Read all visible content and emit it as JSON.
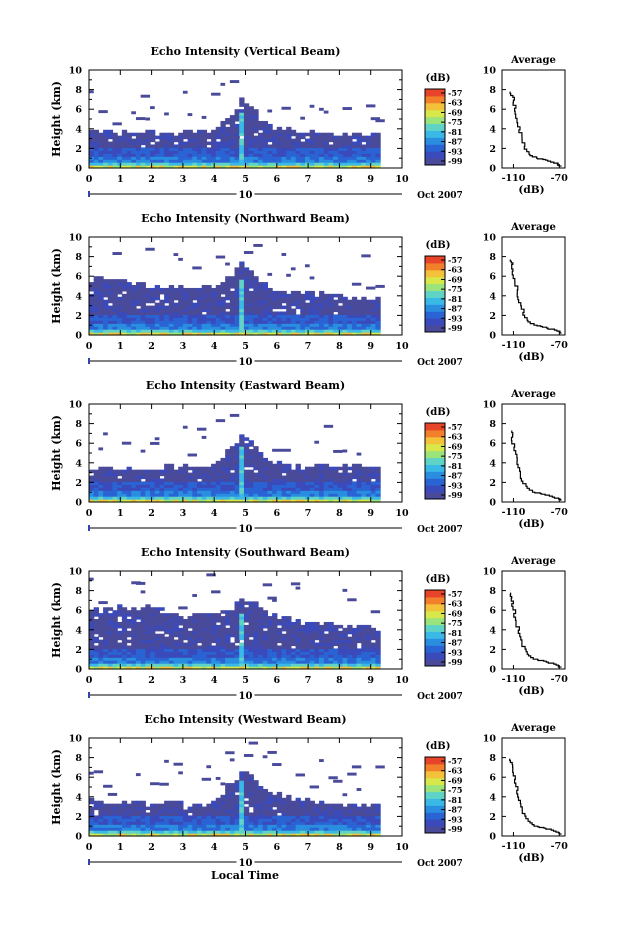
{
  "colors": {
    "colorbar": [
      "#4a4a9a",
      "#3a4aba",
      "#2a63d3",
      "#2a8ee0",
      "#3ab8e6",
      "#5fd3c6",
      "#9be37b",
      "#d8e84a",
      "#f4c13a",
      "#f2802a",
      "#e8442a"
    ],
    "ink": "#000000"
  },
  "x_axis_label": "Local Time",
  "panels": [
    {
      "title": "Echo Intensity (Vertical Beam)",
      "ylabel": "Height (km)",
      "xticks": [
        "0",
        "1",
        "2",
        "3",
        "4",
        "5",
        "6",
        "7",
        "8",
        "9",
        "10"
      ],
      "yticks": [
        "0",
        "2",
        "4",
        "6",
        "8",
        "10"
      ],
      "date_day": "10",
      "date_label": "Oct 2007",
      "cb_unit": "(dB)",
      "cb_ticks": [
        "-57",
        "-63",
        "-69",
        "-75",
        "-81",
        "-87",
        "-93",
        "-99"
      ],
      "avg_title": "Average",
      "avg_xticks": [
        "-110",
        "-70"
      ],
      "avg_yticks": [
        "0",
        "2",
        "4",
        "6",
        "8",
        "10"
      ],
      "avg_unit": "(dB)"
    },
    {
      "title": "Echo Intensity (Northward Beam)",
      "ylabel": "Height (km)",
      "xticks": [
        "0",
        "1",
        "2",
        "3",
        "4",
        "5",
        "6",
        "7",
        "8",
        "9",
        "10"
      ],
      "yticks": [
        "0",
        "2",
        "4",
        "6",
        "8",
        "10"
      ],
      "date_day": "10",
      "date_label": "Oct 2007",
      "cb_unit": "(dB)",
      "cb_ticks": [
        "-57",
        "-63",
        "-69",
        "-75",
        "-81",
        "-87",
        "-93",
        "-99"
      ],
      "avg_title": "Average",
      "avg_xticks": [
        "-110",
        "-70"
      ],
      "avg_yticks": [
        "0",
        "2",
        "4",
        "6",
        "8",
        "10"
      ],
      "avg_unit": "(dB)"
    },
    {
      "title": "Echo Intensity (Eastward Beam)",
      "ylabel": "Height (km)",
      "xticks": [
        "0",
        "1",
        "2",
        "3",
        "4",
        "5",
        "6",
        "7",
        "8",
        "9",
        "10"
      ],
      "yticks": [
        "0",
        "2",
        "4",
        "6",
        "8",
        "10"
      ],
      "date_day": "10",
      "date_label": "Oct 2007",
      "cb_unit": "(dB)",
      "cb_ticks": [
        "-57",
        "-63",
        "-69",
        "-75",
        "-81",
        "-87",
        "-93",
        "-99"
      ],
      "avg_title": "Average",
      "avg_xticks": [
        "-110",
        "-70"
      ],
      "avg_yticks": [
        "0",
        "2",
        "4",
        "6",
        "8",
        "10"
      ],
      "avg_unit": "(dB)"
    },
    {
      "title": "Echo Intensity (Southward Beam)",
      "ylabel": "Height (km)",
      "xticks": [
        "0",
        "1",
        "2",
        "3",
        "4",
        "5",
        "6",
        "7",
        "8",
        "9",
        "10"
      ],
      "yticks": [
        "0",
        "2",
        "4",
        "6",
        "8",
        "10"
      ],
      "date_day": "10",
      "date_label": "Oct 2007",
      "cb_unit": "(dB)",
      "cb_ticks": [
        "-57",
        "-63",
        "-69",
        "-75",
        "-81",
        "-87",
        "-93",
        "-99"
      ],
      "avg_title": "Average",
      "avg_xticks": [
        "-110",
        "-70"
      ],
      "avg_yticks": [
        "0",
        "2",
        "4",
        "6",
        "8",
        "10"
      ],
      "avg_unit": "(dB)"
    },
    {
      "title": "Echo Intensity (Westward Beam)",
      "ylabel": "Height (km)",
      "xticks": [
        "0",
        "1",
        "2",
        "3",
        "4",
        "5",
        "6",
        "7",
        "8",
        "9",
        "10"
      ],
      "yticks": [
        "0",
        "2",
        "4",
        "6",
        "8",
        "10"
      ],
      "date_day": "10",
      "date_label": "Oct 2007",
      "cb_unit": "(dB)",
      "cb_ticks": [
        "-57",
        "-63",
        "-69",
        "-75",
        "-81",
        "-87",
        "-93",
        "-99"
      ],
      "avg_title": "Average",
      "avg_xticks": [
        "-110",
        "-70"
      ],
      "avg_yticks": [
        "0",
        "2",
        "4",
        "6",
        "8",
        "10"
      ],
      "avg_unit": "(dB)"
    }
  ],
  "chart_data": [
    {
      "type": "heatmap",
      "title": "Echo Intensity (Vertical Beam)",
      "xlabel": "",
      "ylabel": "Height (km)",
      "xlim": [
        0,
        10
      ],
      "ylim": [
        0,
        10
      ],
      "colorbar": {
        "unit": "(dB)",
        "range": [
          -99,
          -57
        ],
        "ticks": [
          -57,
          -63,
          -69,
          -75,
          -81,
          -87,
          -93,
          -99
        ]
      },
      "echo_top_km": [
        {
          "x": 0,
          "y": 3.8
        },
        {
          "x": 1,
          "y": 3.7
        },
        {
          "x": 2,
          "y": 3.6
        },
        {
          "x": 3,
          "y": 3.7
        },
        {
          "x": 4,
          "y": 3.9
        },
        {
          "x": 4.7,
          "y": 5.8
        },
        {
          "x": 4.9,
          "y": 7.5
        },
        {
          "x": 5.5,
          "y": 5.0
        },
        {
          "x": 6,
          "y": 4.0
        },
        {
          "x": 7,
          "y": 3.8
        },
        {
          "x": 8,
          "y": 3.6
        },
        {
          "x": 9,
          "y": 3.6
        },
        {
          "x": 9.3,
          "y": 3.8
        }
      ],
      "average_profile": {
        "title": "Average",
        "xlabel": "(dB)",
        "xlim": [
          -120,
          -65
        ],
        "ylim": [
          0,
          10
        ],
        "points": [
          {
            "x": -68,
            "y": 0.2
          },
          {
            "x": -72,
            "y": 0.5
          },
          {
            "x": -80,
            "y": 0.8
          },
          {
            "x": -88,
            "y": 1.0
          },
          {
            "x": -95,
            "y": 1.4
          },
          {
            "x": -100,
            "y": 2.2
          },
          {
            "x": -103,
            "y": 3.3
          },
          {
            "x": -105,
            "y": 4.2
          },
          {
            "x": -107,
            "y": 5.5
          },
          {
            "x": -109,
            "y": 6.4
          },
          {
            "x": -110,
            "y": 7.2
          },
          {
            "x": -112,
            "y": 7.8
          }
        ]
      }
    },
    {
      "type": "heatmap",
      "title": "Echo Intensity (Northward Beam)",
      "xlabel": "",
      "ylabel": "Height (km)",
      "xlim": [
        0,
        10
      ],
      "ylim": [
        0,
        10
      ],
      "colorbar": {
        "unit": "(dB)",
        "range": [
          -99,
          -57
        ],
        "ticks": [
          -57,
          -63,
          -69,
          -75,
          -81,
          -87,
          -93,
          -99
        ]
      },
      "echo_top_km": [
        {
          "x": 0,
          "y": 6.0
        },
        {
          "x": 1,
          "y": 5.6
        },
        {
          "x": 2,
          "y": 5.0
        },
        {
          "x": 3,
          "y": 4.8
        },
        {
          "x": 4,
          "y": 4.9
        },
        {
          "x": 4.7,
          "y": 6.5
        },
        {
          "x": 4.9,
          "y": 7.6
        },
        {
          "x": 5.5,
          "y": 5.6
        },
        {
          "x": 6,
          "y": 4.5
        },
        {
          "x": 7,
          "y": 4.2
        },
        {
          "x": 8,
          "y": 4.0
        },
        {
          "x": 9,
          "y": 3.8
        },
        {
          "x": 9.3,
          "y": 3.8
        }
      ],
      "average_profile": {
        "title": "Average",
        "xlabel": "(dB)",
        "xlim": [
          -120,
          -65
        ],
        "ylim": [
          0,
          10
        ],
        "points": [
          {
            "x": -68,
            "y": 0.2
          },
          {
            "x": -72,
            "y": 0.5
          },
          {
            "x": -82,
            "y": 0.8
          },
          {
            "x": -90,
            "y": 1.0
          },
          {
            "x": -97,
            "y": 1.5
          },
          {
            "x": -101,
            "y": 2.3
          },
          {
            "x": -104,
            "y": 3.3
          },
          {
            "x": -106,
            "y": 4.2
          },
          {
            "x": -108,
            "y": 5.4
          },
          {
            "x": -110,
            "y": 6.5
          },
          {
            "x": -111,
            "y": 7.2
          },
          {
            "x": -112,
            "y": 7.7
          }
        ]
      }
    },
    {
      "type": "heatmap",
      "title": "Echo Intensity (Eastward Beam)",
      "xlabel": "",
      "ylabel": "Height (km)",
      "xlim": [
        0,
        10
      ],
      "ylim": [
        0,
        10
      ],
      "colorbar": {
        "unit": "(dB)",
        "range": [
          -99,
          -57
        ],
        "ticks": [
          -57,
          -63,
          -69,
          -75,
          -81,
          -87,
          -93,
          -99
        ]
      },
      "echo_top_km": [
        {
          "x": 0,
          "y": 3.4
        },
        {
          "x": 1,
          "y": 3.5
        },
        {
          "x": 2,
          "y": 3.4
        },
        {
          "x": 3,
          "y": 3.6
        },
        {
          "x": 4,
          "y": 4.0
        },
        {
          "x": 4.7,
          "y": 6.0
        },
        {
          "x": 4.9,
          "y": 7.2
        },
        {
          "x": 5.5,
          "y": 4.8
        },
        {
          "x": 6,
          "y": 3.9
        },
        {
          "x": 7,
          "y": 3.8
        },
        {
          "x": 8,
          "y": 3.7
        },
        {
          "x": 9,
          "y": 3.6
        },
        {
          "x": 9.3,
          "y": 3.6
        }
      ],
      "average_profile": {
        "title": "Average",
        "xlabel": "(dB)",
        "xlim": [
          -120,
          -65
        ],
        "ylim": [
          0,
          10
        ],
        "points": [
          {
            "x": -68,
            "y": 0.2
          },
          {
            "x": -73,
            "y": 0.5
          },
          {
            "x": -82,
            "y": 0.8
          },
          {
            "x": -91,
            "y": 1.0
          },
          {
            "x": -98,
            "y": 1.6
          },
          {
            "x": -102,
            "y": 2.4
          },
          {
            "x": -105,
            "y": 3.5
          },
          {
            "x": -107,
            "y": 4.5
          },
          {
            "x": -109,
            "y": 5.6
          },
          {
            "x": -111,
            "y": 6.6
          },
          {
            "x": -112,
            "y": 7.3
          }
        ]
      }
    },
    {
      "type": "heatmap",
      "title": "Echo Intensity (Southward Beam)",
      "xlabel": "",
      "ylabel": "Height (km)",
      "xlim": [
        0,
        10
      ],
      "ylim": [
        0,
        10
      ],
      "colorbar": {
        "unit": "(dB)",
        "range": [
          -99,
          -57
        ],
        "ticks": [
          -57,
          -63,
          -69,
          -75,
          -81,
          -87,
          -93,
          -99
        ]
      },
      "echo_top_km": [
        {
          "x": 0,
          "y": 6.0
        },
        {
          "x": 1,
          "y": 6.3
        },
        {
          "x": 2,
          "y": 6.2
        },
        {
          "x": 3,
          "y": 5.5
        },
        {
          "x": 4,
          "y": 5.6
        },
        {
          "x": 4.7,
          "y": 6.5
        },
        {
          "x": 4.9,
          "y": 7.5
        },
        {
          "x": 5.5,
          "y": 6.2
        },
        {
          "x": 6,
          "y": 5.3
        },
        {
          "x": 7,
          "y": 4.8
        },
        {
          "x": 8,
          "y": 4.4
        },
        {
          "x": 9,
          "y": 4.3
        },
        {
          "x": 9.3,
          "y": 4.0
        }
      ],
      "average_profile": {
        "title": "Average",
        "xlabel": "(dB)",
        "xlim": [
          -120,
          -65
        ],
        "ylim": [
          0,
          10
        ],
        "points": [
          {
            "x": -68,
            "y": 0.2
          },
          {
            "x": -73,
            "y": 0.5
          },
          {
            "x": -82,
            "y": 0.8
          },
          {
            "x": -90,
            "y": 1.0
          },
          {
            "x": -97,
            "y": 1.5
          },
          {
            "x": -101,
            "y": 2.3
          },
          {
            "x": -104,
            "y": 3.3
          },
          {
            "x": -106,
            "y": 4.3
          },
          {
            "x": -108,
            "y": 5.3
          },
          {
            "x": -110,
            "y": 6.4
          },
          {
            "x": -111,
            "y": 7.2
          },
          {
            "x": -112,
            "y": 7.8
          }
        ]
      }
    },
    {
      "type": "heatmap",
      "title": "Echo Intensity (Westward Beam)",
      "xlabel": "Local Time",
      "ylabel": "Height (km)",
      "xlim": [
        0,
        10
      ],
      "ylim": [
        0,
        10
      ],
      "colorbar": {
        "unit": "(dB)",
        "range": [
          -99,
          -57
        ],
        "ticks": [
          -57,
          -63,
          -69,
          -75,
          -81,
          -87,
          -93,
          -99
        ]
      },
      "echo_top_km": [
        {
          "x": 0,
          "y": 3.6
        },
        {
          "x": 1,
          "y": 3.5
        },
        {
          "x": 2,
          "y": 3.4
        },
        {
          "x": 3,
          "y": 3.5
        },
        {
          "x": 4,
          "y": 3.7
        },
        {
          "x": 4.7,
          "y": 5.8
        },
        {
          "x": 4.9,
          "y": 7.0
        },
        {
          "x": 5.5,
          "y": 5.2
        },
        {
          "x": 6,
          "y": 4.2
        },
        {
          "x": 7,
          "y": 3.6
        },
        {
          "x": 8,
          "y": 3.3
        },
        {
          "x": 9,
          "y": 3.2
        },
        {
          "x": 9.3,
          "y": 3.4
        }
      ],
      "average_profile": {
        "title": "Average",
        "xlabel": "(dB)",
        "xlim": [
          -120,
          -65
        ],
        "ylim": [
          0,
          10
        ],
        "points": [
          {
            "x": -68,
            "y": 0.2
          },
          {
            "x": -72,
            "y": 0.5
          },
          {
            "x": -81,
            "y": 0.8
          },
          {
            "x": -89,
            "y": 1.0
          },
          {
            "x": -96,
            "y": 1.5
          },
          {
            "x": -101,
            "y": 2.3
          },
          {
            "x": -104,
            "y": 3.3
          },
          {
            "x": -106,
            "y": 4.3
          },
          {
            "x": -108,
            "y": 5.4
          },
          {
            "x": -110,
            "y": 6.5
          },
          {
            "x": -111,
            "y": 7.3
          },
          {
            "x": -113,
            "y": 7.9
          }
        ]
      }
    }
  ]
}
